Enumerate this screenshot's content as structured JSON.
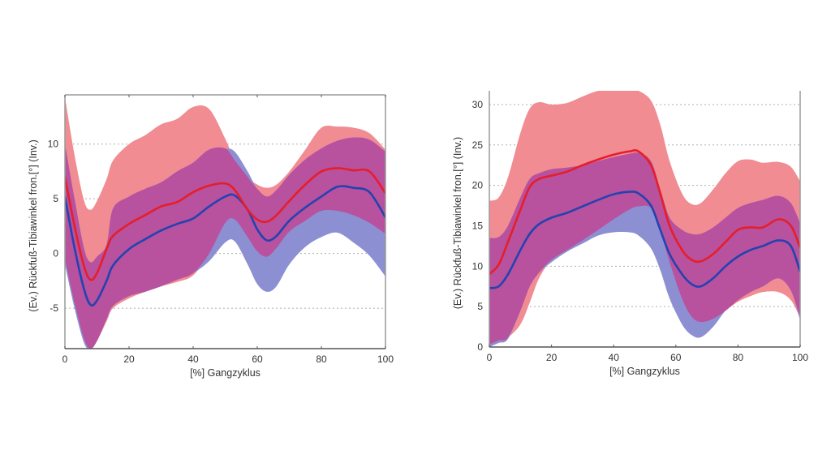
{
  "colors": {
    "red_band": "#f08c92",
    "blue_band": "#8c8fd2",
    "overlap": "#b8519e",
    "red_line": "#e61e2a",
    "blue_line": "#2343b0",
    "axis": "#9a9a9a",
    "grid": "#9a9a9a"
  },
  "chart_data": [
    {
      "type": "area",
      "title": "",
      "xlabel": "[%] Gangzyklus",
      "ylabel": "(Ev.)   Rückfuß-Tibiawinkel fron.[°]   (Inv.)",
      "xlim": [
        0,
        100
      ],
      "ylim": [
        -8.7,
        14.5
      ],
      "xticks": [
        0,
        20,
        40,
        60,
        80,
        100
      ],
      "xtick_labels": [
        "0",
        "20",
        "40",
        "60",
        "80",
        "100"
      ],
      "yticks": [
        -5,
        0,
        5,
        10
      ],
      "ytick_labels": [
        "-5",
        "0",
        "5",
        "10"
      ],
      "grid": "y-dotted",
      "x": [
        0,
        3,
        6,
        8,
        10,
        13,
        15,
        20,
        25,
        30,
        35,
        40,
        45,
        50,
        53,
        57,
        60,
        63,
        66,
        70,
        75,
        80,
        85,
        90,
        95,
        100
      ],
      "series": [
        {
          "name": "red-mean",
          "values": [
            7.0,
            2.5,
            -1.2,
            -2.4,
            -1.8,
            0.4,
            1.6,
            2.7,
            3.5,
            4.3,
            4.7,
            5.6,
            6.2,
            6.4,
            5.8,
            4.0,
            3.1,
            2.9,
            3.5,
            4.8,
            6.3,
            7.5,
            7.8,
            7.6,
            7.5,
            5.5
          ]
        },
        {
          "name": "blue-mean",
          "values": [
            5.2,
            0.5,
            -3.3,
            -4.7,
            -4.3,
            -2.5,
            -1.1,
            0.4,
            1.3,
            2.1,
            2.7,
            3.2,
            4.3,
            5.2,
            5.3,
            4.0,
            2.2,
            1.2,
            1.6,
            3.0,
            4.2,
            5.2,
            6.1,
            6.0,
            5.6,
            3.3
          ]
        },
        {
          "name": "red-band",
          "upper": [
            14.3,
            9.0,
            4.8,
            4.0,
            4.8,
            6.8,
            8.5,
            10.0,
            10.8,
            11.8,
            12.3,
            13.4,
            13.2,
            10.5,
            8.5,
            7.0,
            6.3,
            6.0,
            6.3,
            7.5,
            9.5,
            11.5,
            11.6,
            11.5,
            11.0,
            9.5
          ],
          "lower": [
            -0.5,
            -4.5,
            -7.8,
            -8.7,
            -8.0,
            -6.2,
            -5.0,
            -4.1,
            -3.5,
            -3.0,
            -2.6,
            -2.0,
            0.0,
            2.8,
            3.1,
            1.5,
            0.2,
            -0.3,
            0.5,
            2.0,
            3.0,
            3.9,
            3.9,
            3.5,
            2.8,
            1.8
          ]
        },
        {
          "name": "blue-band",
          "upper": [
            10.0,
            5.0,
            0.4,
            -0.8,
            -0.3,
            0.8,
            4.1,
            5.2,
            5.9,
            6.5,
            7.5,
            8.3,
            9.5,
            9.6,
            9.3,
            7.5,
            5.9,
            5.2,
            5.8,
            7.2,
            8.6,
            9.6,
            10.3,
            10.6,
            10.4,
            9.3
          ],
          "lower": [
            -1.0,
            -5.0,
            -8.2,
            -8.7,
            -8.0,
            -6.0,
            -4.8,
            -3.9,
            -3.5,
            -3.0,
            -2.4,
            -1.8,
            -0.7,
            1.0,
            1.1,
            -1.0,
            -2.8,
            -3.5,
            -3.0,
            -1.0,
            0.6,
            1.5,
            1.9,
            1.0,
            -0.2,
            -2.1
          ]
        }
      ]
    },
    {
      "type": "area",
      "title": "",
      "xlabel": "[%] Gangzyklus",
      "ylabel": "(Ev.)   Rückfuß-Tibiawinkel fron.[°]   (Inv.)",
      "xlim": [
        0,
        100
      ],
      "ylim": [
        0,
        31.7
      ],
      "xticks": [
        0,
        20,
        40,
        60,
        80,
        100
      ],
      "xtick_labels": [
        "0",
        "20",
        "40",
        "60",
        "80",
        "100"
      ],
      "yticks": [
        0,
        5,
        10,
        15,
        20,
        25,
        30
      ],
      "ytick_labels": [
        "0",
        "5",
        "10",
        "15",
        "20",
        "25",
        "30"
      ],
      "grid": "y-dotted",
      "x": [
        0,
        3,
        6,
        10,
        13,
        16,
        20,
        25,
        30,
        35,
        40,
        45,
        48,
        52,
        55,
        58,
        62,
        65,
        68,
        72,
        76,
        80,
        84,
        88,
        93,
        97,
        100
      ],
      "series": [
        {
          "name": "red-mean",
          "values": [
            9.0,
            10.2,
            13.0,
            17.0,
            19.8,
            20.8,
            21.2,
            21.7,
            22.5,
            23.2,
            23.8,
            24.2,
            24.2,
            22.5,
            19.0,
            15.0,
            12.0,
            10.8,
            10.6,
            11.5,
            13.0,
            14.5,
            14.8,
            14.8,
            15.8,
            15.0,
            12.3
          ]
        },
        {
          "name": "blue-mean",
          "values": [
            7.3,
            7.5,
            9.0,
            12.0,
            14.0,
            15.2,
            16.0,
            16.6,
            17.4,
            18.2,
            18.9,
            19.2,
            19.0,
            17.5,
            14.5,
            11.5,
            9.0,
            7.8,
            7.5,
            8.5,
            10.0,
            11.2,
            12.0,
            12.5,
            13.2,
            12.5,
            9.3
          ]
        },
        {
          "name": "red-band",
          "upper": [
            18.1,
            18.5,
            21.0,
            26.5,
            29.5,
            30.3,
            30.0,
            30.2,
            31.0,
            31.7,
            31.9,
            31.9,
            31.7,
            30.5,
            27.5,
            23.0,
            19.0,
            17.7,
            17.8,
            19.5,
            21.5,
            23.0,
            23.2,
            22.8,
            22.9,
            22.3,
            20.5
          ],
          "lower": [
            0.3,
            0.8,
            1.2,
            2.8,
            5.5,
            8.5,
            10.8,
            12.0,
            13.2,
            14.5,
            15.8,
            17.0,
            17.4,
            17.2,
            14.5,
            10.5,
            6.0,
            3.8,
            3.1,
            3.5,
            4.5,
            5.6,
            6.3,
            6.8,
            6.8,
            5.8,
            3.6
          ]
        },
        {
          "name": "blue-band",
          "upper": [
            13.5,
            13.6,
            15.0,
            18.5,
            20.8,
            21.5,
            22.0,
            22.2,
            22.5,
            23.0,
            23.5,
            23.9,
            24.0,
            23.0,
            19.5,
            16.0,
            14.5,
            14.0,
            14.0,
            14.8,
            16.0,
            17.2,
            17.8,
            18.2,
            18.7,
            17.8,
            15.3
          ],
          "lower": [
            0.0,
            0.5,
            1.0,
            4.5,
            7.5,
            9.2,
            10.5,
            11.8,
            12.8,
            13.8,
            14.2,
            14.2,
            13.8,
            12.2,
            9.5,
            6.0,
            2.8,
            1.5,
            1.2,
            2.5,
            4.5,
            5.8,
            6.8,
            7.5,
            8.5,
            7.0,
            3.3
          ]
        }
      ]
    }
  ]
}
